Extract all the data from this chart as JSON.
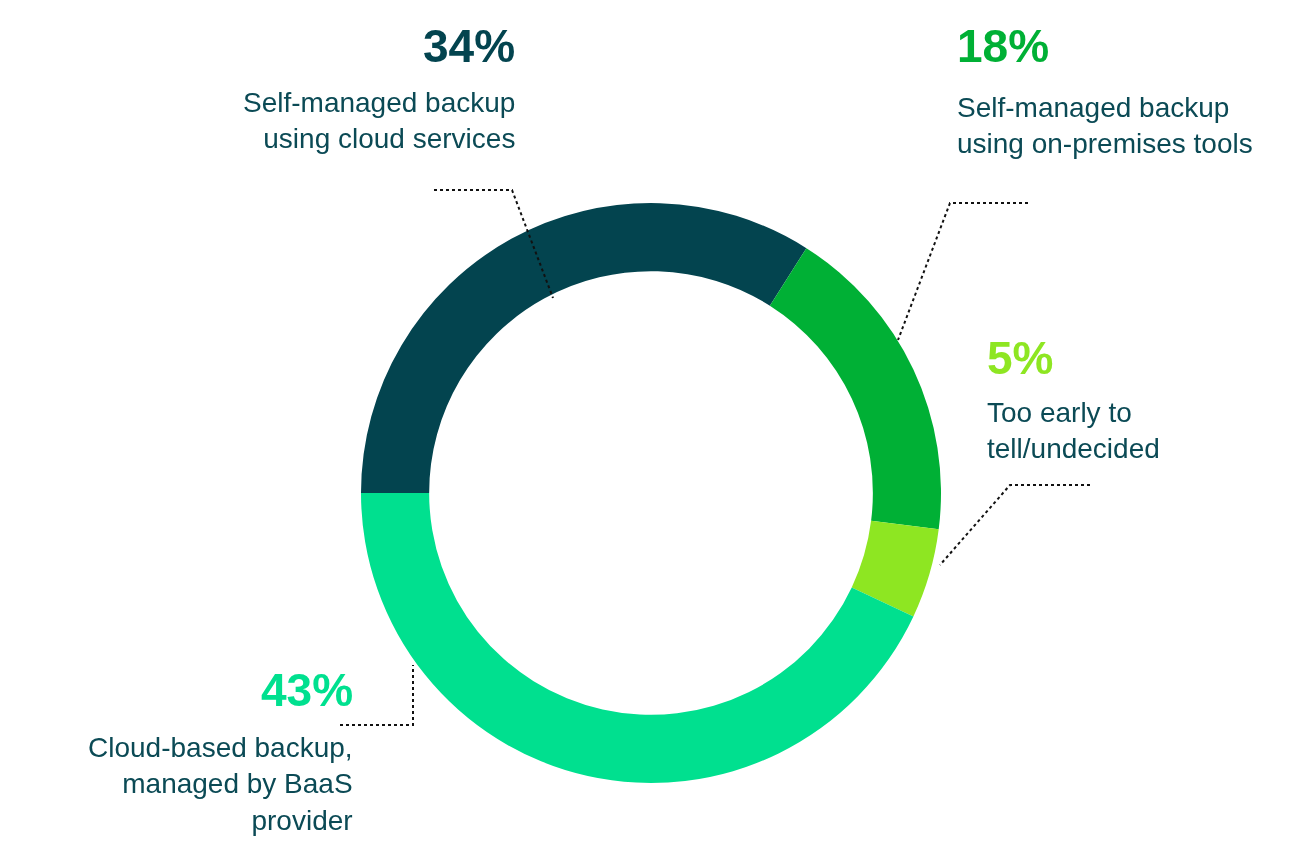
{
  "chart_data": {
    "type": "donut",
    "categories": [
      "Self-managed backup\nusing cloud services",
      "Self-managed backup\nusing on-premises tools",
      "Too early to\ntell/undecided",
      "Cloud-based backup,\nmanaged by BaaS\nprovider"
    ],
    "values": [
      34,
      18,
      5,
      43
    ],
    "value_labels": [
      "34%",
      "18%",
      "5%",
      "43%"
    ],
    "colors": [
      "#03444f",
      "#00b035",
      "#8ee622",
      "#00e08f"
    ],
    "legend": false
  }
}
